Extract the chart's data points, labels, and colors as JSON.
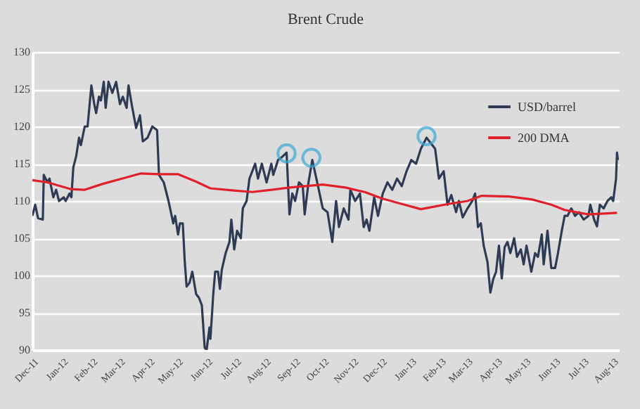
{
  "chart_data": {
    "type": "line",
    "title": "Brent Crude",
    "series": [
      {
        "name": "USD/barrel",
        "color": "#2e3b55",
        "x": [
          "2011-12-01",
          "2011-12-04",
          "2011-12-07",
          "2011-12-12",
          "2011-12-13",
          "2011-12-17",
          "2011-12-19",
          "2011-12-23",
          "2011-12-26",
          "2011-12-29",
          "2012-01-03",
          "2012-01-05",
          "2012-01-09",
          "2012-01-11",
          "2012-01-13",
          "2012-01-16",
          "2012-01-19",
          "2012-01-21",
          "2012-01-25",
          "2012-01-28",
          "2012-02-01",
          "2012-02-04",
          "2012-02-06",
          "2012-02-09",
          "2012-02-11",
          "2012-02-14",
          "2012-02-16",
          "2012-02-19",
          "2012-02-23",
          "2012-02-27",
          "2012-03-02",
          "2012-03-05",
          "2012-03-09",
          "2012-03-11",
          "2012-03-15",
          "2012-03-19",
          "2012-03-23",
          "2012-03-26",
          "2012-03-31",
          "2012-04-05",
          "2012-04-10",
          "2012-04-12",
          "2012-04-17",
          "2012-04-22",
          "2012-04-27",
          "2012-04-29",
          "2012-05-02",
          "2012-05-04",
          "2012-05-07",
          "2012-05-09",
          "2012-05-11",
          "2012-05-14",
          "2012-05-17",
          "2012-05-21",
          "2012-05-24",
          "2012-05-27",
          "2012-05-30",
          "2012-06-01",
          "2012-06-04",
          "2012-06-05",
          "2012-06-08",
          "2012-06-10",
          "2012-06-13",
          "2012-06-15",
          "2012-06-17",
          "2012-06-21",
          "2012-06-25",
          "2012-06-27",
          "2012-06-30",
          "2012-07-03",
          "2012-07-07",
          "2012-07-09",
          "2012-07-13",
          "2012-07-16",
          "2012-07-22",
          "2012-07-25",
          "2012-07-29",
          "2012-08-03",
          "2012-08-08",
          "2012-08-10",
          "2012-08-15",
          "2012-08-20",
          "2012-08-24",
          "2012-08-27",
          "2012-08-30",
          "2012-09-02",
          "2012-09-06",
          "2012-09-10",
          "2012-09-12",
          "2012-09-16",
          "2012-09-20",
          "2012-09-26",
          "2012-10-01",
          "2012-10-06",
          "2012-10-11",
          "2012-10-15",
          "2012-10-18",
          "2012-10-23",
          "2012-10-28",
          "2012-10-30",
          "2012-11-04",
          "2012-11-09",
          "2012-11-13",
          "2012-11-16",
          "2012-11-19",
          "2012-11-24",
          "2012-11-28",
          "2012-12-03",
          "2012-12-08",
          "2012-12-13",
          "2012-12-18",
          "2012-12-23",
          "2012-12-28",
          "2013-01-02",
          "2013-01-07",
          "2013-01-12",
          "2013-01-18",
          "2013-01-24",
          "2013-01-27",
          "2013-01-31",
          "2013-02-05",
          "2013-02-09",
          "2013-02-13",
          "2013-02-18",
          "2013-02-21",
          "2013-02-25",
          "2013-03-02",
          "2013-03-07",
          "2013-03-10",
          "2013-03-13",
          "2013-03-16",
          "2013-03-19",
          "2013-03-23",
          "2013-03-26",
          "2013-03-29",
          "2013-04-01",
          "2013-04-04",
          "2013-04-07",
          "2013-04-10",
          "2013-04-13",
          "2013-04-16",
          "2013-04-20",
          "2013-04-23",
          "2013-04-27",
          "2013-04-30",
          "2013-05-03",
          "2013-05-08",
          "2013-05-12",
          "2013-05-15",
          "2013-05-19",
          "2013-05-21",
          "2013-05-25",
          "2013-05-29",
          "2013-06-02",
          "2013-06-05",
          "2013-06-09",
          "2013-06-12",
          "2013-06-15",
          "2013-06-19",
          "2013-06-23",
          "2013-06-27",
          "2013-07-02",
          "2013-07-07",
          "2013-07-09",
          "2013-07-13",
          "2013-07-16",
          "2013-07-19",
          "2013-07-23",
          "2013-07-27",
          "2013-07-31",
          "2013-08-02",
          "2013-08-05",
          "2013-08-06",
          "2013-08-07"
        ],
        "values": [
          108,
          109.5,
          107.7,
          107.5,
          113.5,
          112.5,
          113,
          110.5,
          111.5,
          110,
          110.5,
          110,
          111,
          110.5,
          114.5,
          116,
          118.5,
          117.5,
          120,
          120,
          125.5,
          123,
          121.8,
          124,
          123.5,
          126,
          122.5,
          126,
          124.5,
          126,
          123,
          124,
          122.5,
          125.5,
          122.5,
          119.8,
          121.5,
          118,
          118.5,
          120,
          119.5,
          113.5,
          112.5,
          110,
          107,
          108,
          105.5,
          107,
          107,
          102,
          98.5,
          99,
          100.5,
          97.5,
          97,
          96,
          90.3,
          90,
          93,
          91.5,
          97.5,
          100.5,
          100.5,
          98.2,
          100.8,
          103,
          104.5,
          107.5,
          103.5,
          106,
          105,
          109,
          110,
          113,
          115,
          113,
          115,
          112.5,
          115,
          113.5,
          115.5,
          116,
          116.5,
          108.2,
          111,
          110,
          112.5,
          112,
          108.2,
          112.5,
          115.5,
          112,
          109,
          108.5,
          104.5,
          110,
          106.5,
          109,
          107.5,
          111.5,
          110,
          111,
          106.5,
          107.5,
          106,
          110.5,
          108,
          111,
          112.5,
          111.5,
          113,
          112,
          114,
          115.5,
          115,
          117,
          118.5,
          117.5,
          117,
          113,
          114,
          109.5,
          110.8,
          108.5,
          110,
          107.8,
          109,
          110,
          111,
          106.5,
          107,
          104,
          101.8,
          97.7,
          99.5,
          100.5,
          104,
          99.6,
          103.8,
          104.5,
          103,
          105,
          102.5,
          103.5,
          101.5,
          104,
          100.5,
          103,
          102.5,
          105.5,
          101.5,
          106,
          101,
          101,
          103,
          106,
          108,
          108,
          109,
          108,
          108.5,
          107.5,
          108,
          109.5,
          107.5,
          106.6,
          109.5,
          109,
          110,
          110.5,
          110,
          113,
          116.5,
          115.5
        ]
      },
      {
        "name": "200 DMA",
        "color": "#e0202a",
        "x": [
          "2011-12-01",
          "2011-12-17",
          "2012-01-10",
          "2012-01-25",
          "2012-02-13",
          "2012-03-04",
          "2012-03-24",
          "2012-04-12",
          "2012-05-02",
          "2012-05-21",
          "2012-06-05",
          "2012-06-30",
          "2012-07-19",
          "2012-08-08",
          "2012-08-27",
          "2012-10-01",
          "2012-10-25",
          "2012-11-14",
          "2012-12-03",
          "2012-12-23",
          "2013-01-12",
          "2013-02-10",
          "2013-03-02",
          "2013-03-17",
          "2013-04-15",
          "2013-05-09",
          "2013-05-29",
          "2013-06-12",
          "2013-07-07",
          "2013-08-06"
        ],
        "values": [
          112.8,
          112.5,
          111.6,
          111.5,
          112.3,
          113,
          113.7,
          113.6,
          113.6,
          112.6,
          111.7,
          111.4,
          111.2,
          111.5,
          111.8,
          112.2,
          111.8,
          111.2,
          110.3,
          109.6,
          108.9,
          109.6,
          110,
          110.7,
          110.6,
          110.2,
          109.5,
          108.8,
          108.2,
          108.4
        ]
      },
      {
        "type": "scatter",
        "marker": "circle",
        "color": "#3aa9d6",
        "x": [
          "2012-08-24",
          "2012-09-19",
          "2013-01-18"
        ],
        "values": [
          116.4,
          115.8,
          118.7
        ]
      }
    ],
    "xlim": [
      "2011-12-01",
      "2013-08-08"
    ],
    "xticks": [
      {
        "value": "2011-12-01",
        "label": "Dec-11"
      },
      {
        "value": "2012-01-01",
        "label": "Jan-12"
      },
      {
        "value": "2012-02-01",
        "label": "Feb-12"
      },
      {
        "value": "2012-03-01",
        "label": "Mar-12"
      },
      {
        "value": "2012-04-01",
        "label": "Apr-12"
      },
      {
        "value": "2012-05-01",
        "label": "May-12"
      },
      {
        "value": "2012-06-01",
        "label": "Jun-12"
      },
      {
        "value": "2012-07-01",
        "label": "Jul-12"
      },
      {
        "value": "2012-08-01",
        "label": "Aug-12"
      },
      {
        "value": "2012-09-01",
        "label": "Sep-12"
      },
      {
        "value": "2012-10-01",
        "label": "Oct-12"
      },
      {
        "value": "2012-11-01",
        "label": "Nov-12"
      },
      {
        "value": "2012-12-01",
        "label": "Dec-12"
      },
      {
        "value": "2013-01-01",
        "label": "Jan-13"
      },
      {
        "value": "2013-02-01",
        "label": "Feb-13"
      },
      {
        "value": "2013-03-01",
        "label": "Mar-13"
      },
      {
        "value": "2013-04-01",
        "label": "Apr-13"
      },
      {
        "value": "2013-05-01",
        "label": "May-13"
      },
      {
        "value": "2013-06-01",
        "label": "Jun-13"
      },
      {
        "value": "2013-07-01",
        "label": "Jul-13"
      },
      {
        "value": "2013-08-01",
        "label": "Aug-13"
      }
    ],
    "ylim": [
      90,
      130
    ],
    "yticks": [
      90,
      95,
      100,
      105,
      110,
      115,
      120,
      125,
      130
    ],
    "grid": "y",
    "legend": "top right"
  }
}
